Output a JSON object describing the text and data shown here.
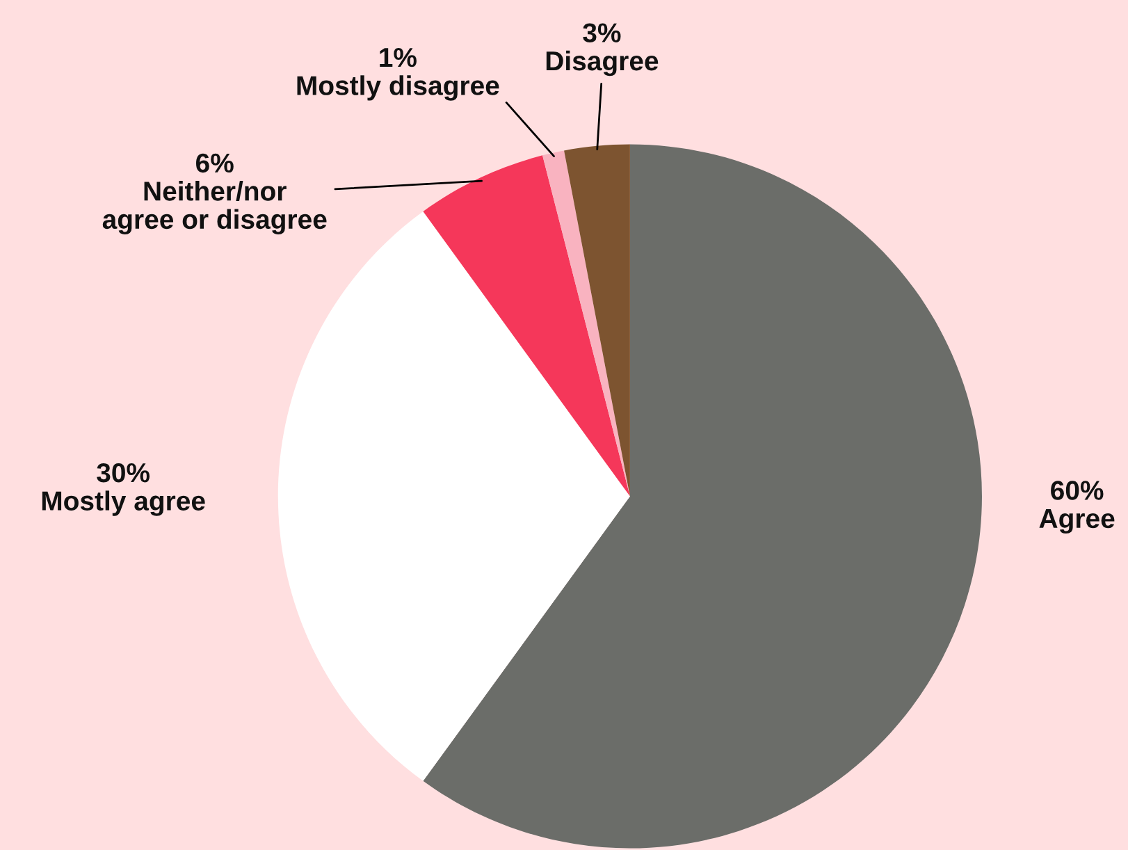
{
  "chart_data": {
    "type": "pie",
    "categories": [
      "Agree",
      "Mostly agree",
      "Neither/nor\nagree or disagree",
      "Mostly disagree",
      "Disagree"
    ],
    "values": [
      60,
      30,
      6,
      1,
      3
    ],
    "value_labels": [
      "60%",
      "30%",
      "6%",
      "1%",
      "3%"
    ],
    "colors": [
      "#6b6d69",
      "#ffffff",
      "#f5375a",
      "#f9b3c0",
      "#7d5430"
    ],
    "legend": false
  }
}
